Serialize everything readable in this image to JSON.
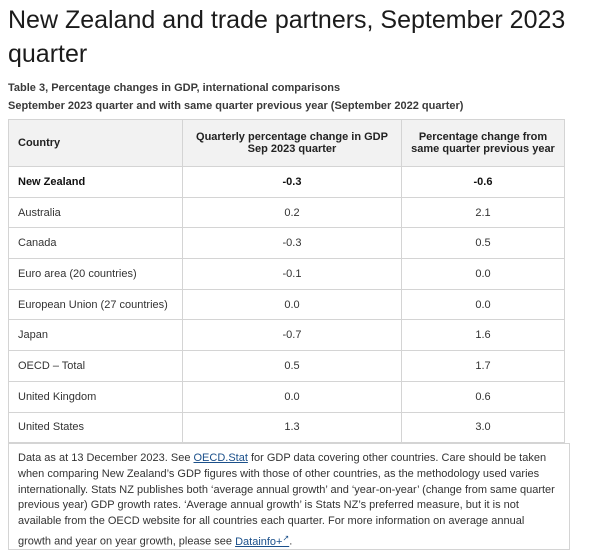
{
  "page": {
    "title": "New Zealand and trade partners, September 2023 quarter",
    "caption_line1": "Table 3, Percentage changes in GDP, international comparisons",
    "caption_line2": "September 2023 quarter and with same quarter previous year (September 2022 quarter)"
  },
  "table": {
    "headers": [
      "Country",
      "Quarterly percentage change in GDP Sep 2023 quarter",
      "Percentage change from same quarter previous year"
    ],
    "rows": [
      {
        "country": "New Zealand",
        "quarterly": "-0.3",
        "annual": "-0.6"
      },
      {
        "country": "Australia",
        "quarterly": "0.2",
        "annual": "2.1"
      },
      {
        "country": "Canada",
        "quarterly": "-0.3",
        "annual": "0.5"
      },
      {
        "country": "Euro area (20 countries)",
        "quarterly": "-0.1",
        "annual": "0.0"
      },
      {
        "country": "European Union (27 countries)",
        "quarterly": "0.0",
        "annual": "0.0"
      },
      {
        "country": "Japan",
        "quarterly": "-0.7",
        "annual": "1.6"
      },
      {
        "country": "OECD – Total",
        "quarterly": "0.5",
        "annual": "1.7"
      },
      {
        "country": "United Kingdom",
        "quarterly": "0.0",
        "annual": "0.6"
      },
      {
        "country": "United States",
        "quarterly": "1.3",
        "annual": "3.0"
      }
    ]
  },
  "note": {
    "part1": "Data as at 13 December 2023. See ",
    "link1": "OECD.Stat",
    "part2": " for GDP data covering other countries. Care should be taken when comparing New Zealand’s GDP figures with those of other countries, as the methodology used varies internationally. Stats NZ publishes both ‘average annual growth’ and ‘year-on-year’ (change from same quarter previous year) GDP growth rates. ‘Average annual growth’ is Stats NZ’s preferred measure, but it is not available from the OECD website for all countries each quarter. For more information on average annual growth and year on year growth, please see ",
    "link2": "Datainfo+",
    "link2_icon": "external-link-icon",
    "part3": "."
  }
}
